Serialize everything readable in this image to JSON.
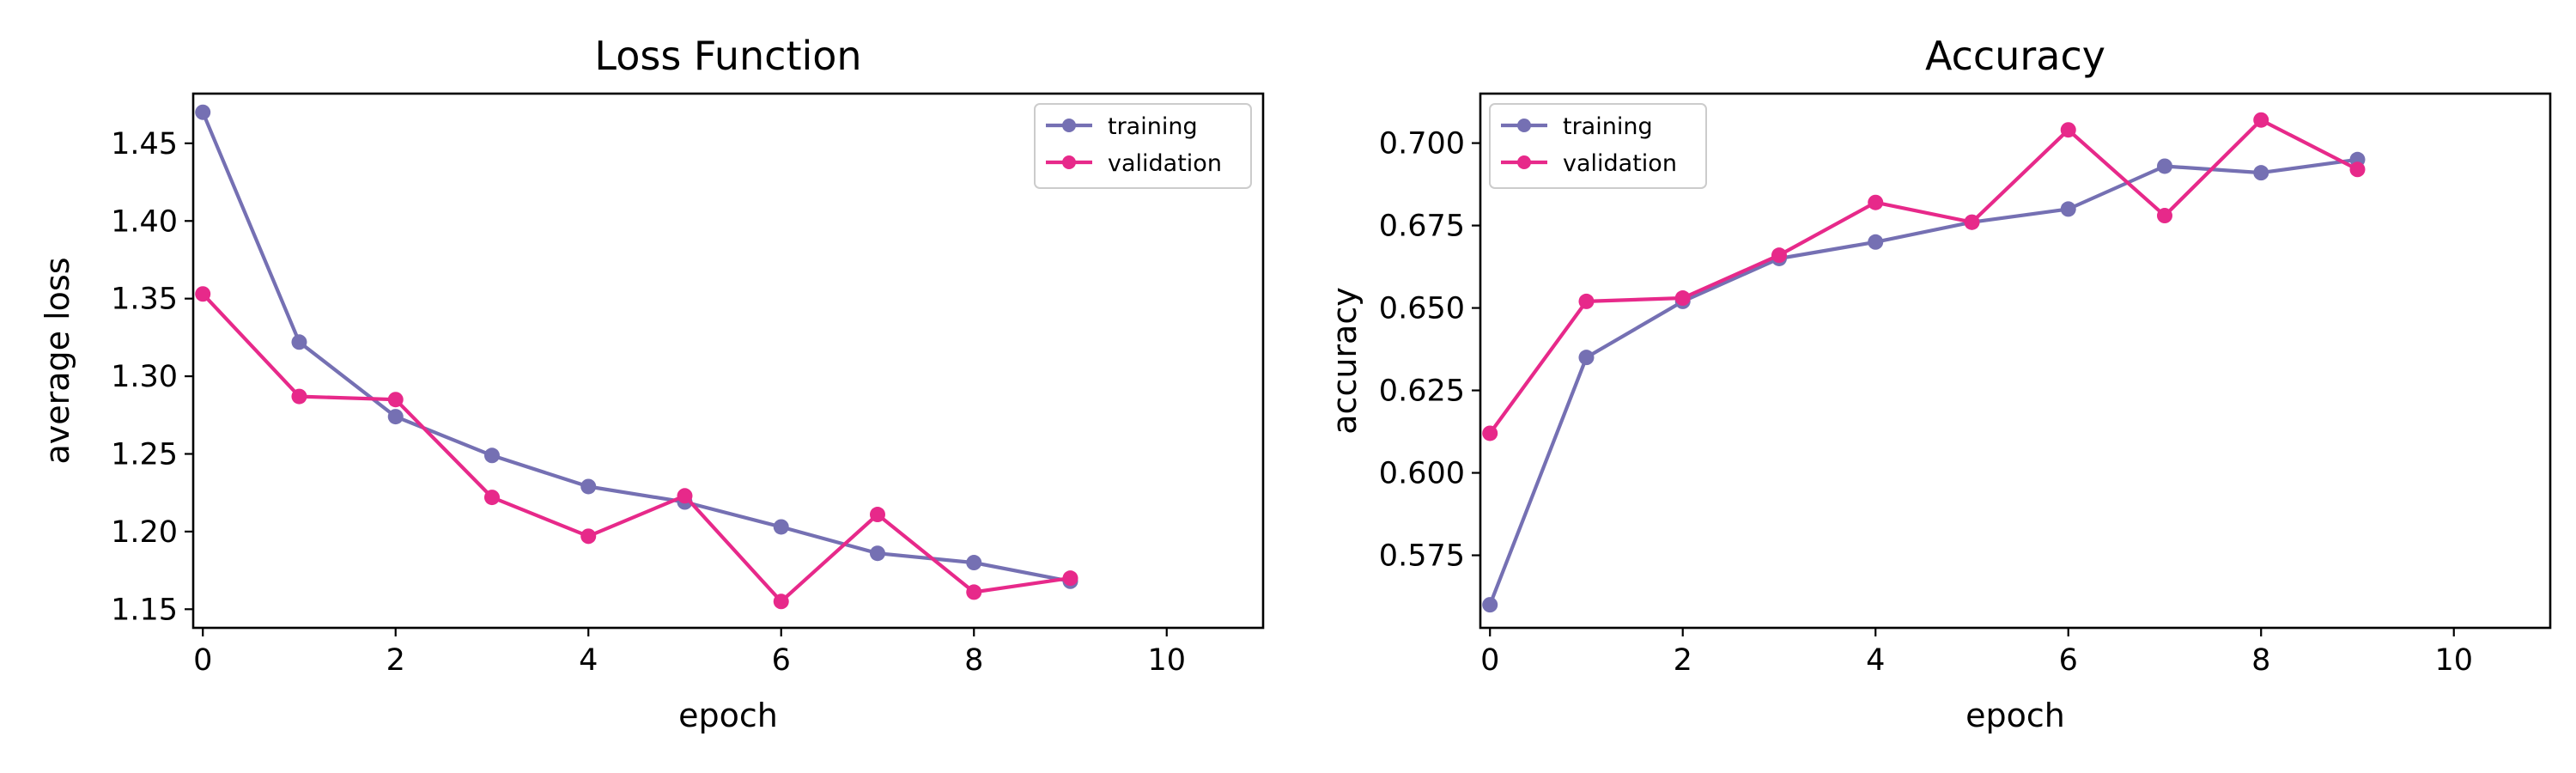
{
  "colors": {
    "training": "#7570b3",
    "validation": "#e7298a"
  },
  "chart_data": [
    {
      "type": "line",
      "title": "Loss Function",
      "xlabel": "epoch",
      "ylabel": "average loss",
      "xlim": [
        -0.1,
        11
      ],
      "ylim": [
        1.138,
        1.482
      ],
      "xticks": [
        0,
        2,
        4,
        6,
        8,
        10
      ],
      "yticks": [
        1.15,
        1.2,
        1.25,
        1.3,
        1.35,
        1.4,
        1.45
      ],
      "yticklabels": [
        "1.15",
        "1.20",
        "1.25",
        "1.30",
        "1.35",
        "1.40",
        "1.45"
      ],
      "legend": "top-right",
      "grid": false,
      "x": [
        0,
        1,
        2,
        3,
        4,
        5,
        6,
        7,
        8,
        9
      ],
      "series": [
        {
          "name": "training",
          "color": "#7570b3",
          "values": [
            1.47,
            1.322,
            1.274,
            1.249,
            1.229,
            1.219,
            1.203,
            1.186,
            1.18,
            1.168
          ]
        },
        {
          "name": "validation",
          "color": "#e7298a",
          "values": [
            1.353,
            1.287,
            1.285,
            1.222,
            1.197,
            1.223,
            1.155,
            1.211,
            1.161,
            1.17
          ]
        }
      ]
    },
    {
      "type": "line",
      "title": "Accuracy",
      "xlabel": "epoch",
      "ylabel": "accuracy",
      "xlim": [
        -0.1,
        11
      ],
      "ylim": [
        0.553,
        0.715
      ],
      "xticks": [
        0,
        2,
        4,
        6,
        8,
        10
      ],
      "yticks": [
        0.575,
        0.6,
        0.625,
        0.65,
        0.675,
        0.7
      ],
      "yticklabels": [
        "0.575",
        "0.600",
        "0.625",
        "0.650",
        "0.675",
        "0.700"
      ],
      "legend": "top-left",
      "grid": false,
      "x": [
        0,
        1,
        2,
        3,
        4,
        5,
        6,
        7,
        8,
        9
      ],
      "series": [
        {
          "name": "training",
          "color": "#7570b3",
          "values": [
            0.56,
            0.635,
            0.652,
            0.665,
            0.67,
            0.676,
            0.68,
            0.693,
            0.691,
            0.695
          ]
        },
        {
          "name": "validation",
          "color": "#e7298a",
          "values": [
            0.612,
            0.652,
            0.653,
            0.666,
            0.682,
            0.676,
            0.704,
            0.678,
            0.707,
            0.692
          ]
        }
      ]
    }
  ]
}
